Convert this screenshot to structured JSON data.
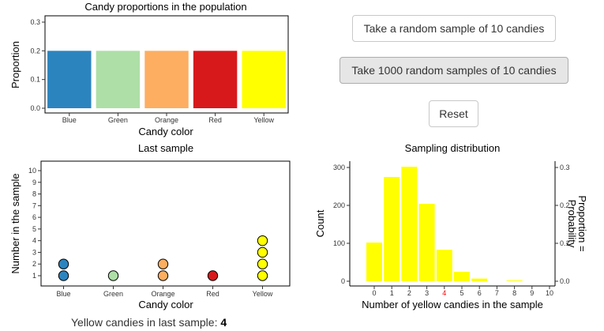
{
  "colors": {
    "blue": "#2c84bf",
    "green": "#addfa6",
    "orange": "#fdae60",
    "red": "#d7191c",
    "yellow": "#ffff00",
    "highlight_tick": "#ff0000"
  },
  "buttons": {
    "sample_one": "Take a random sample of 10 candies",
    "sample_many": "Take 1000 random samples of 10 candies",
    "reset": "Reset"
  },
  "summary": {
    "label": "Yellow candies in last sample:",
    "value": "4"
  },
  "chart_data": [
    {
      "id": "population",
      "type": "bar",
      "title": "Candy proportions in the population",
      "xlabel": "Candy color",
      "ylabel": "Proportion",
      "categories": [
        "Blue",
        "Green",
        "Orange",
        "Red",
        "Yellow"
      ],
      "values": [
        0.2,
        0.2,
        0.2,
        0.2,
        0.2
      ],
      "bar_colors": [
        "#2c84bf",
        "#addfa6",
        "#fdae60",
        "#d7191c",
        "#ffff00"
      ],
      "ylim": [
        0,
        0.3
      ],
      "yticks": [
        "0.0",
        "0.1",
        "0.2",
        "0.3"
      ]
    },
    {
      "id": "last_sample",
      "type": "scatter",
      "title": "Last sample",
      "xlabel": "Candy color",
      "ylabel": "Number in the sample",
      "categories": [
        "Blue",
        "Green",
        "Orange",
        "Red",
        "Yellow"
      ],
      "counts": [
        2,
        1,
        2,
        1,
        4
      ],
      "point_colors": [
        "#2c84bf",
        "#addfa6",
        "#fdae60",
        "#d7191c",
        "#ffff00"
      ],
      "ylim": [
        0,
        10.5
      ],
      "yticks": [
        "1",
        "2",
        "3",
        "4",
        "5",
        "6",
        "7",
        "8",
        "9",
        "10"
      ]
    },
    {
      "id": "sampling_distribution",
      "type": "bar",
      "title": "Sampling distribution",
      "xlabel": "Number of yellow candies in the sample",
      "ylabel": "Count",
      "ylabel_right": "Proportion =\nProbability",
      "x": [
        0,
        1,
        2,
        3,
        4,
        5,
        6,
        7,
        8,
        9,
        10
      ],
      "values": [
        102,
        275,
        302,
        204,
        83,
        25,
        7,
        0,
        2,
        0,
        0
      ],
      "bar_color": "#ffff00",
      "highlight_x": 4,
      "ylim": [
        0,
        320
      ],
      "yticks": [
        "0",
        "100",
        "200",
        "300"
      ],
      "yticks_right": [
        "0.0",
        "0.1",
        "0.2",
        "0.3"
      ],
      "xticks": [
        "0",
        "1",
        "2",
        "3",
        "4",
        "5",
        "6",
        "7",
        "8",
        "9",
        "10"
      ]
    }
  ]
}
